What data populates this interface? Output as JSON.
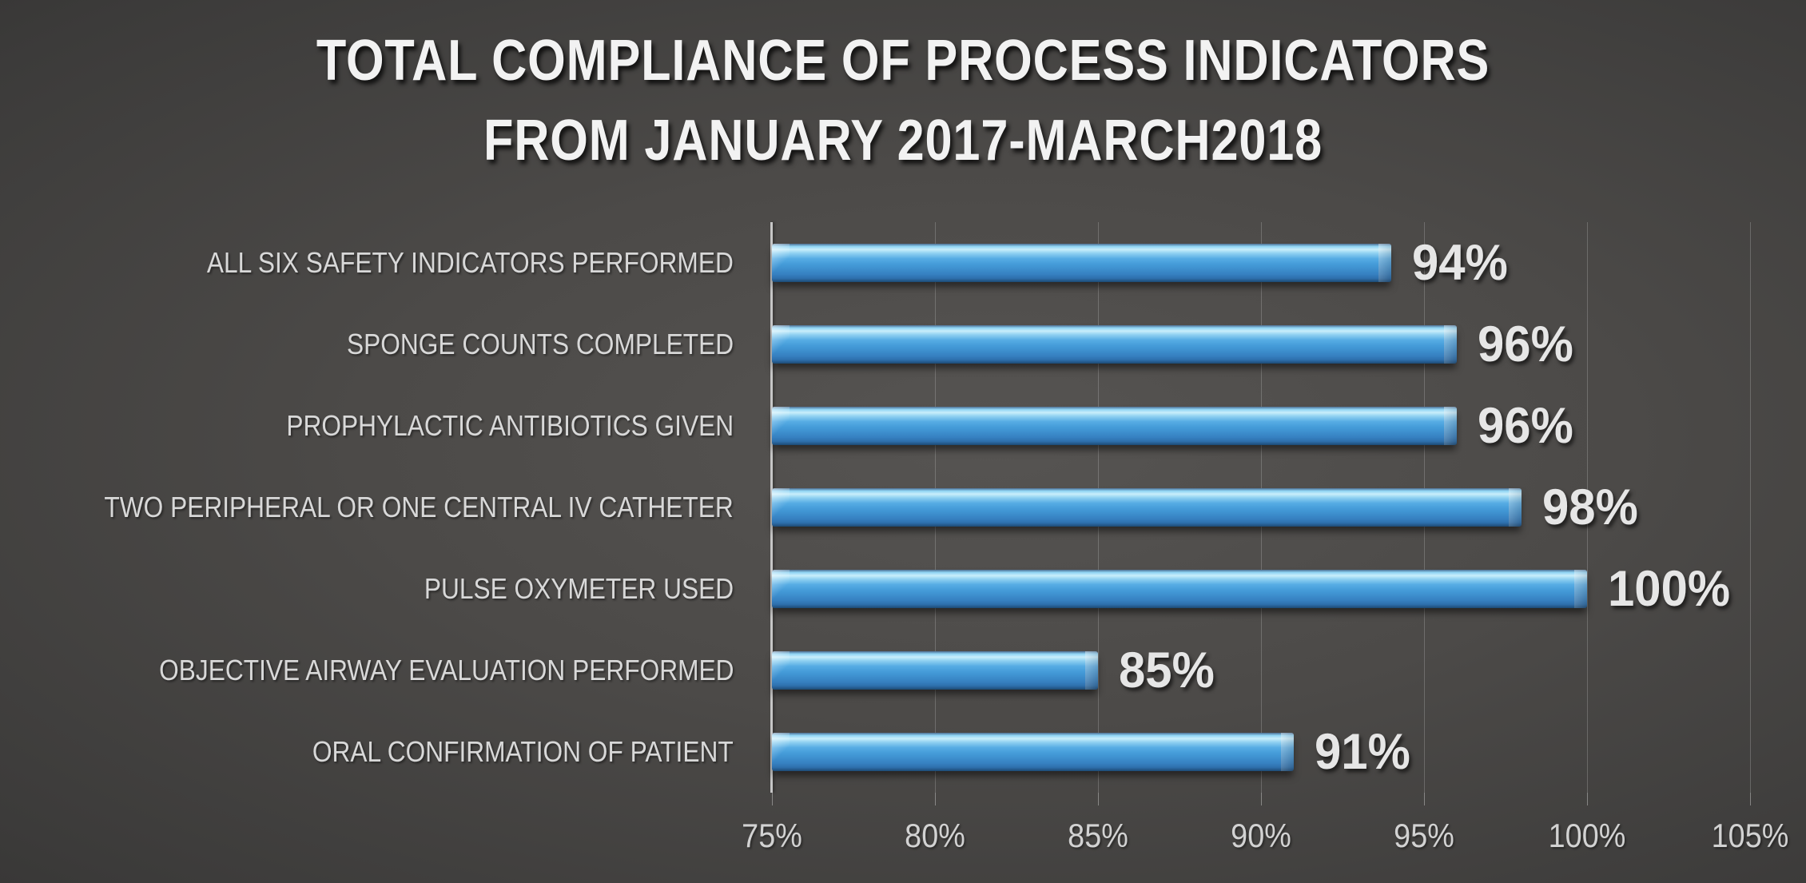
{
  "page": {
    "background_center_color": "#565452",
    "background_edge_color": "#232222"
  },
  "chart_data": {
    "type": "bar",
    "orientation": "horizontal",
    "title": "TOTAL COMPLIANCE OF PROCESS INDICATORS FROM JANUARY 2017-MARCH2018",
    "title_lines": [
      "TOTAL COMPLIANCE OF PROCESS INDICATORS",
      "FROM JANUARY 2017-MARCH2018"
    ],
    "categories": [
      "ALL SIX SAFETY INDICATORS PERFORMED",
      "SPONGE COUNTS COMPLETED",
      "PROPHYLACTIC ANTIBIOTICS GIVEN",
      "TWO PERIPHERAL OR ONE CENTRAL IV CATHETER",
      "PULSE OXYMETER USED",
      "OBJECTIVE AIRWAY EVALUATION PERFORMED",
      "ORAL CONFIRMATION OF PATIENT"
    ],
    "values": [
      94,
      96,
      96,
      98,
      100,
      85,
      91
    ],
    "value_labels": [
      "94%",
      "96%",
      "96%",
      "98%",
      "100%",
      "85%",
      "91%"
    ],
    "x_ticks": [
      "75%",
      "80%",
      "85%",
      "90%",
      "95%",
      "100%",
      "105%"
    ],
    "x_tick_values": [
      75,
      80,
      85,
      90,
      95,
      100,
      105
    ],
    "xlim": [
      75,
      105
    ],
    "grid": true,
    "legend": false,
    "bar_color_main": "#3E92D2",
    "bar_color_highlight": "#C9EEFB",
    "bar_color_dark": "#1F5076",
    "title_color": "#F2F2F2",
    "label_color": "#D8D8D8",
    "value_label_color": "#E6E6E6",
    "axis_line_color": "#C6C6C6"
  }
}
